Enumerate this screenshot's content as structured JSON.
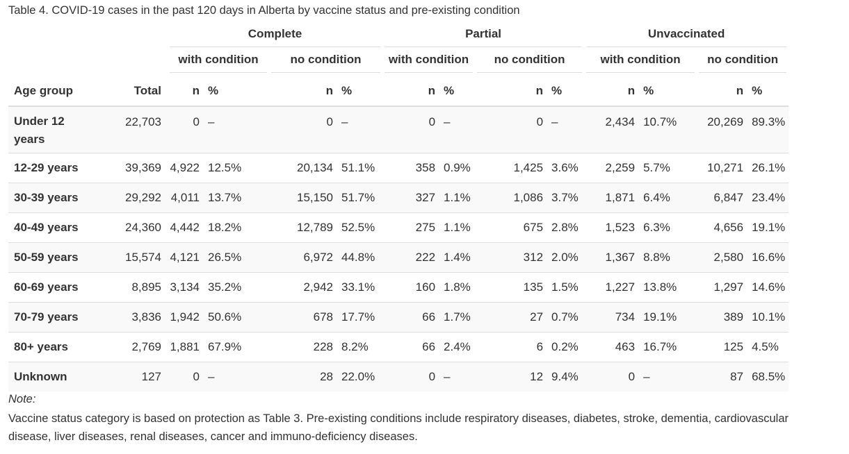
{
  "caption": "Table 4. COVID-19 cases in the past 120 days in Alberta by vaccine status and pre-existing condition",
  "groups": [
    "Complete",
    "Partial",
    "Unvaccinated"
  ],
  "subgroups": [
    "with condition",
    "no condition",
    "with condition",
    "no condition",
    "with condition",
    "no condition"
  ],
  "columns": {
    "age": "Age group",
    "total": "Total",
    "n": "n",
    "pct": "%"
  },
  "rows": [
    {
      "age": "Under 12 years",
      "total": "22,703",
      "cells": [
        [
          "0",
          "–"
        ],
        [
          "0",
          "–"
        ],
        [
          "0",
          "–"
        ],
        [
          "0",
          "–"
        ],
        [
          "2,434",
          "10.7%"
        ],
        [
          "20,269",
          "89.3%"
        ]
      ]
    },
    {
      "age": "12-29 years",
      "total": "39,369",
      "cells": [
        [
          "4,922",
          "12.5%"
        ],
        [
          "20,134",
          "51.1%"
        ],
        [
          "358",
          "0.9%"
        ],
        [
          "1,425",
          "3.6%"
        ],
        [
          "2,259",
          "5.7%"
        ],
        [
          "10,271",
          "26.1%"
        ]
      ]
    },
    {
      "age": "30-39 years",
      "total": "29,292",
      "cells": [
        [
          "4,011",
          "13.7%"
        ],
        [
          "15,150",
          "51.7%"
        ],
        [
          "327",
          "1.1%"
        ],
        [
          "1,086",
          "3.7%"
        ],
        [
          "1,871",
          "6.4%"
        ],
        [
          "6,847",
          "23.4%"
        ]
      ]
    },
    {
      "age": "40-49 years",
      "total": "24,360",
      "cells": [
        [
          "4,442",
          "18.2%"
        ],
        [
          "12,789",
          "52.5%"
        ],
        [
          "275",
          "1.1%"
        ],
        [
          "675",
          "2.8%"
        ],
        [
          "1,523",
          "6.3%"
        ],
        [
          "4,656",
          "19.1%"
        ]
      ]
    },
    {
      "age": "50-59 years",
      "total": "15,574",
      "cells": [
        [
          "4,121",
          "26.5%"
        ],
        [
          "6,972",
          "44.8%"
        ],
        [
          "222",
          "1.4%"
        ],
        [
          "312",
          "2.0%"
        ],
        [
          "1,367",
          "8.8%"
        ],
        [
          "2,580",
          "16.6%"
        ]
      ]
    },
    {
      "age": "60-69 years",
      "total": "8,895",
      "cells": [
        [
          "3,134",
          "35.2%"
        ],
        [
          "2,942",
          "33.1%"
        ],
        [
          "160",
          "1.8%"
        ],
        [
          "135",
          "1.5%"
        ],
        [
          "1,227",
          "13.8%"
        ],
        [
          "1,297",
          "14.6%"
        ]
      ]
    },
    {
      "age": "70-79 years",
      "total": "3,836",
      "cells": [
        [
          "1,942",
          "50.6%"
        ],
        [
          "678",
          "17.7%"
        ],
        [
          "66",
          "1.7%"
        ],
        [
          "27",
          "0.7%"
        ],
        [
          "734",
          "19.1%"
        ],
        [
          "389",
          "10.1%"
        ]
      ]
    },
    {
      "age": "80+ years",
      "total": "2,769",
      "cells": [
        [
          "1,881",
          "67.9%"
        ],
        [
          "228",
          "8.2%"
        ],
        [
          "66",
          "2.4%"
        ],
        [
          "6",
          "0.2%"
        ],
        [
          "463",
          "16.7%"
        ],
        [
          "125",
          "4.5%"
        ]
      ]
    },
    {
      "age": "Unknown",
      "total": "127",
      "cells": [
        [
          "0",
          "–"
        ],
        [
          "28",
          "22.0%"
        ],
        [
          "0",
          "–"
        ],
        [
          "12",
          "9.4%"
        ],
        [
          "0",
          "–"
        ],
        [
          "87",
          "68.5%"
        ]
      ]
    }
  ],
  "note": {
    "label": "Note:",
    "text": "Vaccine status category is based on protection as Table 3. Pre-existing conditions include respiratory diseases, diabetes, stroke, dementia, cardiovascular disease, liver diseases, renal diseases, cancer and immuno-deficiency diseases."
  }
}
